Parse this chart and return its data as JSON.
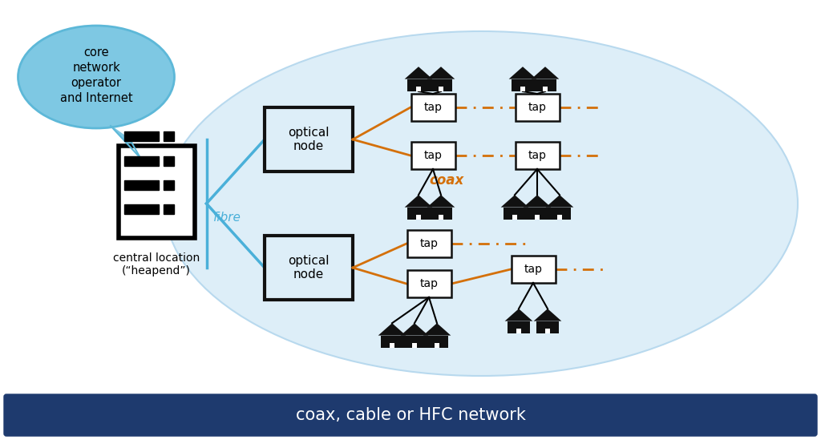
{
  "bg_color": "#ffffff",
  "ellipse_color": "#ddeef8",
  "ellipse_border": "#b8d9ee",
  "bubble_color": "#7ec8e3",
  "bubble_border": "#5db8d8",
  "node_box_color": "#ddeef8",
  "node_box_border": "#111111",
  "tap_box_color": "#ffffff",
  "tap_box_border": "#111111",
  "fibre_color": "#4ab0d9",
  "coax_color": "#d4700a",
  "footer_color": "#1e3a6e",
  "footer_text": "coax, cable or HFC network",
  "footer_text_color": "#ffffff",
  "bubble_text": "core\nnetwork\noperator\nand Internet",
  "headend_label": "central location\n(“heapend”)",
  "fibre_label": "fibre",
  "coax_label": "coax",
  "node_label": "optical\nnode",
  "house_color": "#111111",
  "house_door_color": "#ffffff"
}
